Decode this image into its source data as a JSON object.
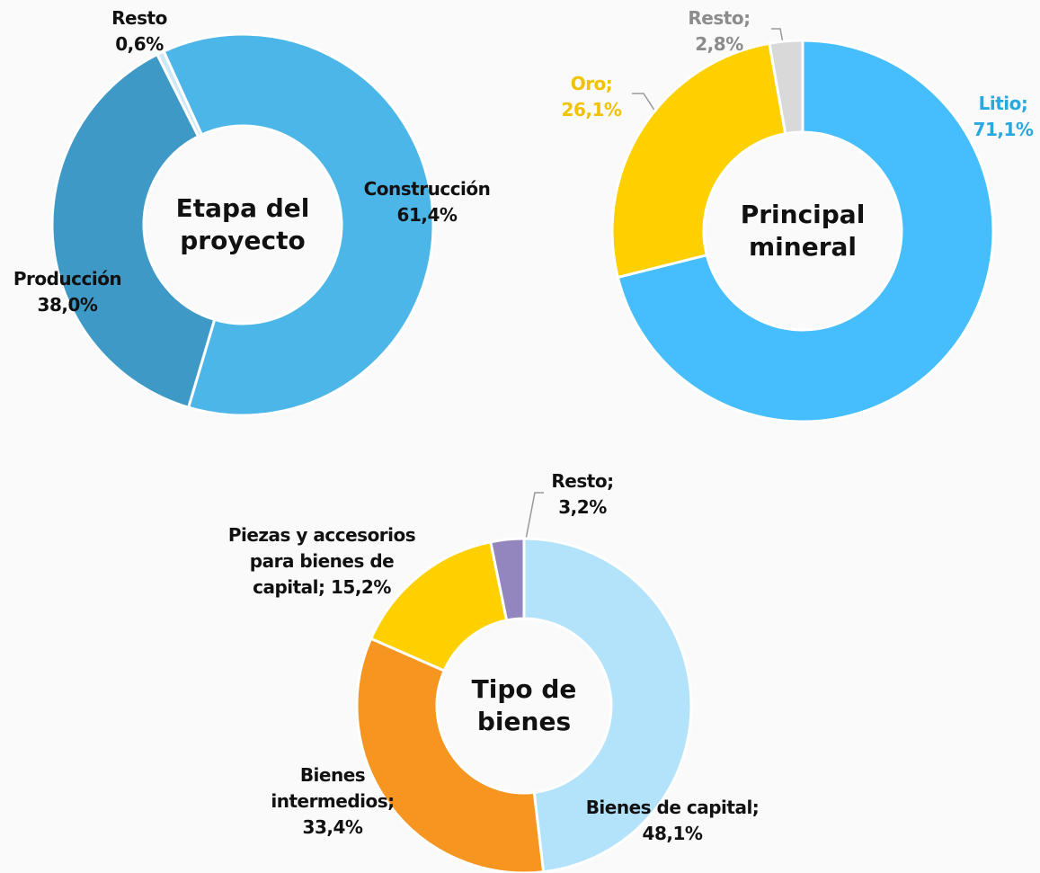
{
  "chart_data": [
    {
      "type": "donut",
      "title": "Etapa del proyecto",
      "categories": [
        "Construcción",
        "Producción",
        "Resto"
      ],
      "values": [
        61.4,
        38.0,
        0.6
      ],
      "value_labels": [
        "61,4%",
        "38,0%",
        "0,6%"
      ],
      "colors": [
        "#4db6e8",
        "#3f99c6",
        "#cfe8f5"
      ],
      "label_colors": [
        "#111111",
        "#111111",
        "#111111"
      ]
    },
    {
      "type": "donut",
      "title": "Principal mineral",
      "categories": [
        "Litio;",
        "Oro;",
        "Resto;"
      ],
      "values": [
        71.1,
        26.1,
        2.8
      ],
      "value_labels": [
        "71,1%",
        "26,1%",
        "2,8%"
      ],
      "colors": [
        "#46bdfc",
        "#fed000",
        "#d9d9d9"
      ],
      "label_colors": [
        "#29a8e0",
        "#f2c200",
        "#8c8c8c"
      ]
    },
    {
      "type": "donut",
      "title": "Tipo de bienes",
      "categories": [
        "Bienes de capital;",
        "Bienes intermedios;",
        "Piezas y accesorios para bienes de capital;",
        "Resto;"
      ],
      "values": [
        48.1,
        33.4,
        15.2,
        3.2
      ],
      "value_labels": [
        "48,1%",
        "33,4%",
        "15,2%",
        "3,2%"
      ],
      "colors": [
        "#b3e2fb",
        "#f6951f",
        "#fed000",
        "#9386be"
      ],
      "label_colors": [
        "#111111",
        "#111111",
        "#111111",
        "#111111"
      ]
    }
  ]
}
